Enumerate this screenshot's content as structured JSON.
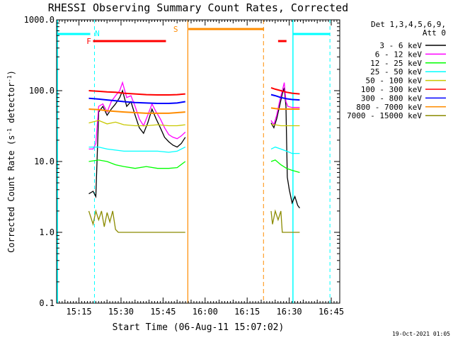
{
  "chart_data": {
    "type": "line",
    "title": "RHESSI Observing Summary Count Rates, Corrected",
    "xlabel": "Start Time (06-Aug-11 15:07:02)",
    "ylabel_main": "Corrected Count Rate (s",
    "ylabel_sup1": "-1",
    "ylabel_mid": " detector",
    "ylabel_sup2": "-1",
    "ylabel_end": ")",
    "yscale": "log",
    "ylim": [
      0.1,
      1000
    ],
    "xlim_minutes": [
      0,
      101
    ],
    "x_ticks": [
      {
        "m": 7.97,
        "label": "15:15"
      },
      {
        "m": 22.97,
        "label": "15:30"
      },
      {
        "m": 37.97,
        "label": "15:45"
      },
      {
        "m": 52.97,
        "label": "16:00"
      },
      {
        "m": 67.97,
        "label": "16:15"
      },
      {
        "m": 82.97,
        "label": "16:30"
      },
      {
        "m": 97.97,
        "label": "16:45"
      }
    ],
    "y_ticks": [
      {
        "v": 0.1,
        "label": "0.1"
      },
      {
        "v": 1,
        "label": "1.0"
      },
      {
        "v": 10,
        "label": "10.0"
      },
      {
        "v": 100,
        "label": "100.0"
      },
      {
        "v": 1000,
        "label": "1000.0"
      }
    ],
    "legend_header": [
      "Det 1,3,4,5,6,9,",
      "Att 0"
    ],
    "timestamp": "19-Oct-2021 01:05",
    "segments": [
      [
        11.5,
        45.9
      ],
      [
        76.5,
        86.7
      ]
    ],
    "series": [
      {
        "name": "3 - 6 keV",
        "color": "#000000",
        "pts1": [
          [
            11.5,
            3.5
          ],
          [
            13,
            3.8
          ],
          [
            14,
            3.2
          ],
          [
            15,
            50
          ],
          [
            16.5,
            60
          ],
          [
            18,
            45
          ],
          [
            19.5,
            55
          ],
          [
            21,
            65
          ],
          [
            22.5,
            80
          ],
          [
            23.5,
            100
          ],
          [
            25,
            60
          ],
          [
            26.5,
            70
          ],
          [
            28,
            45
          ],
          [
            29.5,
            30
          ],
          [
            31,
            25
          ],
          [
            32.5,
            35
          ],
          [
            34,
            55
          ],
          [
            35.5,
            40
          ],
          [
            37,
            30
          ],
          [
            38.5,
            22
          ],
          [
            40,
            19
          ],
          [
            41.5,
            17
          ],
          [
            43,
            16
          ],
          [
            44.5,
            18
          ],
          [
            45.9,
            22
          ]
        ],
        "pts2": [
          [
            76.5,
            35
          ],
          [
            77.5,
            30
          ],
          [
            78.5,
            40
          ],
          [
            79.5,
            60
          ],
          [
            80.5,
            90
          ],
          [
            81.2,
            110
          ],
          [
            81.8,
            60
          ],
          [
            82.3,
            6
          ],
          [
            83,
            4
          ],
          [
            84,
            2.6
          ],
          [
            85,
            3.2
          ],
          [
            86,
            2.4
          ],
          [
            86.7,
            2.2
          ]
        ]
      },
      {
        "name": "6 - 12 keV",
        "color": "#ff00ff",
        "pts1": [
          [
            11.5,
            15
          ],
          [
            13,
            15
          ],
          [
            14,
            18
          ],
          [
            15,
            60
          ],
          [
            16.5,
            65
          ],
          [
            18,
            50
          ],
          [
            19.5,
            70
          ],
          [
            21,
            85
          ],
          [
            22.5,
            100
          ],
          [
            23.5,
            130
          ],
          [
            25,
            80
          ],
          [
            26.5,
            85
          ],
          [
            28,
            60
          ],
          [
            29.5,
            40
          ],
          [
            31,
            32
          ],
          [
            32.5,
            45
          ],
          [
            34,
            65
          ],
          [
            35.5,
            50
          ],
          [
            37,
            40
          ],
          [
            38.5,
            30
          ],
          [
            40,
            24
          ],
          [
            41.5,
            22
          ],
          [
            43,
            21
          ],
          [
            44.5,
            23
          ],
          [
            45.9,
            26
          ]
        ],
        "pts2": [
          [
            76.5,
            38
          ],
          [
            77.5,
            33
          ],
          [
            78.5,
            45
          ],
          [
            79.5,
            70
          ],
          [
            80.5,
            100
          ],
          [
            81.2,
            130
          ],
          [
            81.8,
            70
          ],
          [
            82.5,
            60
          ],
          [
            84,
            58
          ],
          [
            86.7,
            58
          ]
        ]
      },
      {
        "name": "12 - 25 keV",
        "color": "#00ff00",
        "pts1": [
          [
            11.5,
            10
          ],
          [
            15,
            10.5
          ],
          [
            18,
            10
          ],
          [
            21,
            9
          ],
          [
            24,
            8.5
          ],
          [
            28,
            8
          ],
          [
            32,
            8.5
          ],
          [
            36,
            8
          ],
          [
            40,
            8
          ],
          [
            43,
            8.2
          ],
          [
            45.9,
            10
          ]
        ],
        "pts2": [
          [
            76.5,
            10
          ],
          [
            78,
            10.5
          ],
          [
            80,
            9
          ],
          [
            82,
            8
          ],
          [
            84,
            7.5
          ],
          [
            86.7,
            7
          ]
        ]
      },
      {
        "name": "25 - 50 keV",
        "color": "#00ffff",
        "pts1": [
          [
            11.5,
            16
          ],
          [
            15,
            16
          ],
          [
            18,
            15
          ],
          [
            21,
            14.5
          ],
          [
            24,
            14
          ],
          [
            28,
            14
          ],
          [
            32,
            14
          ],
          [
            36,
            14
          ],
          [
            40,
            13.5
          ],
          [
            43,
            14
          ],
          [
            45.9,
            16
          ]
        ],
        "pts2": [
          [
            76.5,
            15
          ],
          [
            78,
            16
          ],
          [
            80,
            15
          ],
          [
            82,
            14
          ],
          [
            84,
            13
          ],
          [
            86.7,
            13
          ]
        ]
      },
      {
        "name": "50 - 100 keV",
        "color": "#c8c800",
        "pts1": [
          [
            11.5,
            35
          ],
          [
            15,
            38
          ],
          [
            18,
            34
          ],
          [
            21,
            36
          ],
          [
            24,
            33
          ],
          [
            28,
            32
          ],
          [
            32,
            32
          ],
          [
            36,
            33
          ],
          [
            40,
            32
          ],
          [
            43,
            32
          ],
          [
            45.9,
            33
          ]
        ],
        "pts2": [
          [
            76.5,
            33
          ],
          [
            78,
            33
          ],
          [
            80,
            32
          ],
          [
            82,
            32
          ],
          [
            84,
            32
          ],
          [
            86.7,
            32
          ]
        ]
      },
      {
        "name": "100 - 300 keV",
        "color": "#ff0000",
        "pts1": [
          [
            11.5,
            100
          ],
          [
            15,
            98
          ],
          [
            18,
            96
          ],
          [
            21,
            95
          ],
          [
            24,
            92
          ],
          [
            28,
            90
          ],
          [
            32,
            88
          ],
          [
            36,
            87
          ],
          [
            40,
            87
          ],
          [
            43,
            88
          ],
          [
            45.9,
            90
          ]
        ],
        "pts2": [
          [
            76.5,
            110
          ],
          [
            78,
            105
          ],
          [
            80,
            100
          ],
          [
            82,
            95
          ],
          [
            84,
            92
          ],
          [
            86.7,
            90
          ]
        ]
      },
      {
        "name": "300 - 800 keV",
        "color": "#0000ff",
        "pts1": [
          [
            11.5,
            78
          ],
          [
            15,
            76
          ],
          [
            18,
            74
          ],
          [
            21,
            72
          ],
          [
            24,
            70
          ],
          [
            28,
            68
          ],
          [
            32,
            67
          ],
          [
            36,
            66
          ],
          [
            40,
            66
          ],
          [
            43,
            67
          ],
          [
            45.9,
            70
          ]
        ],
        "pts2": [
          [
            76.5,
            88
          ],
          [
            78,
            85
          ],
          [
            80,
            80
          ],
          [
            82,
            77
          ],
          [
            84,
            75
          ],
          [
            86.7,
            74
          ]
        ]
      },
      {
        "name": "800 - 7000 keV",
        "color": "#ff8c00",
        "pts1": [
          [
            11.5,
            55
          ],
          [
            15,
            54
          ],
          [
            18,
            52
          ],
          [
            21,
            51
          ],
          [
            24,
            50
          ],
          [
            28,
            49
          ],
          [
            32,
            48
          ],
          [
            36,
            48
          ],
          [
            40,
            48
          ],
          [
            43,
            49
          ],
          [
            45.9,
            50
          ]
        ],
        "pts2": [
          [
            76.5,
            57
          ],
          [
            78,
            56
          ],
          [
            80,
            55
          ],
          [
            82,
            55
          ],
          [
            84,
            55
          ],
          [
            86.7,
            55
          ]
        ]
      },
      {
        "name": "7000 - 15000 keV",
        "color": "#8b8b00",
        "pts1": [
          [
            11.5,
            2
          ],
          [
            13,
            1.3
          ],
          [
            14,
            2
          ],
          [
            15,
            1.5
          ],
          [
            16,
            2
          ],
          [
            17,
            1.2
          ],
          [
            18,
            1.9
          ],
          [
            19,
            1.4
          ],
          [
            20,
            2
          ],
          [
            21,
            1.1
          ],
          [
            22,
            1
          ],
          [
            30,
            1
          ],
          [
            40,
            1
          ],
          [
            45.9,
            1
          ]
        ],
        "pts2": [
          [
            76.5,
            2
          ],
          [
            77,
            1.3
          ],
          [
            78,
            2
          ],
          [
            79,
            1.5
          ],
          [
            80,
            2
          ],
          [
            80.5,
            1
          ],
          [
            86.7,
            1
          ]
        ]
      }
    ],
    "annotations": [
      {
        "label": "N",
        "color": "#00ffff",
        "m": 13.5,
        "y": 46
      },
      {
        "label": "F",
        "color": "#ff0000",
        "m": 12.5,
        "y": 57
      },
      {
        "label": "S",
        "color": "#ff8c00",
        "m": 44.5,
        "y": 40
      }
    ],
    "flag_bars": {
      "saa_cyan": [
        [
          0.3,
          12.0
        ],
        [
          84.3,
          97.5
        ]
      ],
      "flare_red": [
        [
          13.0,
          39.0
        ],
        [
          79.0,
          82.0
        ]
      ],
      "saa_orange": [
        [
          47.0,
          74.0
        ]
      ]
    },
    "markers": {
      "cyan_solid": [
        0.3,
        84.3
      ],
      "cyan_dashed": [
        13.5,
        97.5
      ],
      "orange_solid": [
        46.8
      ],
      "orange_dashed": [
        73.8
      ]
    }
  }
}
